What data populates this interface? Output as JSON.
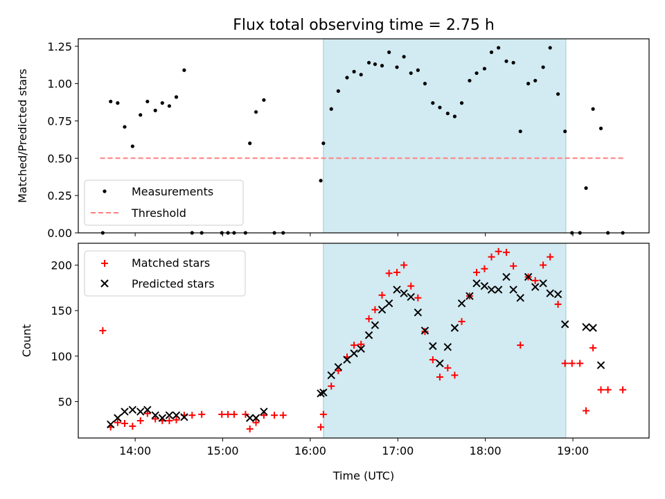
{
  "title": "Flux total observing time = 2.75 h",
  "colors": {
    "measurement": "#000000",
    "threshold": "#ff7f7f",
    "matched": "#ff0000",
    "predicted": "#000000",
    "span": "#add8e6"
  },
  "chart_data": [
    {
      "type": "scatter",
      "ylabel": "Matched/Predicted stars",
      "xlabel": "",
      "xlim": [
        13.35,
        19.87
      ],
      "ylim": [
        0,
        1.3
      ],
      "yticks": [
        0.0,
        0.25,
        0.5,
        0.75,
        1.0,
        1.25
      ],
      "ytick_labels": [
        "0.00",
        "0.25",
        "0.50",
        "0.75",
        "1.00",
        "1.25"
      ],
      "shaded_span": [
        16.15,
        18.92
      ],
      "legend": {
        "position": "lower-left",
        "entries": [
          "Measurements",
          "Threshold"
        ]
      },
      "threshold": {
        "name": "Threshold",
        "value": 0.5,
        "x_range": [
          13.6,
          19.6
        ]
      },
      "series": [
        {
          "name": "Measurements",
          "marker": "dot",
          "x": [
            13.63,
            13.72,
            13.8,
            13.88,
            13.97,
            14.06,
            14.14,
            14.23,
            14.31,
            14.39,
            14.47,
            14.56,
            14.65,
            14.76,
            14.99,
            15.06,
            15.13,
            15.26,
            15.31,
            15.38,
            15.47,
            15.59,
            15.69,
            16.12,
            16.15,
            16.24,
            16.32,
            16.42,
            16.5,
            16.58,
            16.67,
            16.74,
            16.82,
            16.9,
            16.99,
            17.07,
            17.15,
            17.23,
            17.31,
            17.4,
            17.48,
            17.57,
            17.65,
            17.73,
            17.82,
            17.9,
            17.99,
            18.07,
            18.15,
            18.24,
            18.32,
            18.4,
            18.49,
            18.57,
            18.66,
            18.74,
            18.83,
            18.91,
            18.99,
            19.08,
            19.15,
            19.23,
            19.32,
            19.4,
            19.57
          ],
          "y": [
            0.0,
            0.88,
            0.87,
            0.71,
            0.58,
            0.79,
            0.88,
            0.82,
            0.87,
            0.85,
            0.91,
            1.09,
            0.0,
            0.0,
            0.0,
            0.0,
            0.0,
            0.0,
            0.6,
            0.81,
            0.89,
            0.0,
            0.0,
            0.35,
            0.6,
            0.83,
            0.95,
            1.04,
            1.08,
            1.06,
            1.14,
            1.13,
            1.12,
            1.21,
            1.11,
            1.18,
            1.07,
            1.09,
            1.0,
            0.87,
            0.84,
            0.8,
            0.78,
            0.87,
            1.02,
            1.07,
            1.1,
            1.21,
            1.24,
            1.15,
            1.14,
            0.68,
            1.0,
            1.02,
            1.11,
            1.24,
            0.93,
            0.68,
            0.0,
            0.0,
            0.3,
            0.83,
            0.7,
            0.0,
            0.0
          ]
        }
      ]
    },
    {
      "type": "scatter",
      "ylabel": "Count",
      "xlabel": "Time (UTC)",
      "xlim": [
        13.35,
        19.87
      ],
      "ylim": [
        10,
        224
      ],
      "xticks": [
        14,
        15,
        16,
        17,
        18,
        19
      ],
      "xtick_labels": [
        "14:00",
        "15:00",
        "16:00",
        "17:00",
        "18:00",
        "19:00"
      ],
      "yticks": [
        50,
        100,
        150,
        200
      ],
      "ytick_labels": [
        "50",
        "100",
        "150",
        "200"
      ],
      "shaded_span": [
        16.15,
        18.92
      ],
      "legend": {
        "position": "top-left",
        "entries": [
          "Matched stars",
          "Predicted stars"
        ]
      },
      "series": [
        {
          "name": "Matched stars",
          "marker": "plus",
          "x": [
            13.63,
            13.72,
            13.8,
            13.88,
            13.97,
            14.06,
            14.14,
            14.23,
            14.31,
            14.39,
            14.47,
            14.56,
            14.65,
            14.76,
            14.99,
            15.06,
            15.13,
            15.26,
            15.31,
            15.38,
            15.47,
            15.59,
            15.69,
            16.12,
            16.15,
            16.24,
            16.32,
            16.42,
            16.5,
            16.58,
            16.67,
            16.74,
            16.82,
            16.9,
            16.99,
            17.07,
            17.15,
            17.23,
            17.31,
            17.4,
            17.48,
            17.57,
            17.65,
            17.73,
            17.82,
            17.9,
            17.99,
            18.07,
            18.15,
            18.24,
            18.32,
            18.4,
            18.49,
            18.57,
            18.66,
            18.74,
            18.83,
            18.91,
            18.99,
            19.08,
            19.15,
            19.23,
            19.32,
            19.4,
            19.57
          ],
          "y": [
            128,
            22,
            27,
            26,
            23,
            29,
            37,
            31,
            29,
            29,
            30,
            35,
            35,
            36,
            36,
            36,
            36,
            36,
            20,
            27,
            35,
            35,
            35,
            22,
            36,
            67,
            84,
            99,
            112,
            113,
            141,
            151,
            167,
            191,
            192,
            200,
            177,
            164,
            127,
            96,
            77,
            87,
            79,
            138,
            166,
            192,
            196,
            209,
            215,
            214,
            199,
            112,
            187,
            183,
            200,
            209,
            157,
            92,
            92,
            92,
            40,
            109,
            63,
            63,
            63
          ]
        },
        {
          "name": "Predicted stars",
          "marker": "x",
          "x": [
            13.72,
            13.8,
            13.88,
            13.97,
            14.06,
            14.14,
            14.23,
            14.31,
            14.39,
            14.47,
            14.56,
            15.31,
            15.38,
            15.47,
            16.12,
            16.15,
            16.24,
            16.32,
            16.42,
            16.5,
            16.58,
            16.67,
            16.74,
            16.82,
            16.9,
            16.99,
            17.07,
            17.15,
            17.23,
            17.31,
            17.4,
            17.48,
            17.57,
            17.65,
            17.73,
            17.82,
            17.9,
            17.99,
            18.07,
            18.15,
            18.24,
            18.32,
            18.4,
            18.49,
            18.57,
            18.66,
            18.74,
            18.83,
            18.91,
            19.15,
            19.23,
            19.32
          ],
          "y": [
            25,
            32,
            39,
            41,
            39,
            41,
            35,
            32,
            35,
            35,
            33,
            32,
            32,
            39,
            59,
            60,
            79,
            88,
            96,
            103,
            108,
            123,
            134,
            151,
            158,
            173,
            169,
            165,
            148,
            128,
            111,
            92,
            110,
            131,
            158,
            166,
            180,
            177,
            173,
            173,
            187,
            173,
            164,
            187,
            176,
            180,
            169,
            168,
            135,
            132,
            131,
            90
          ]
        }
      ]
    }
  ]
}
